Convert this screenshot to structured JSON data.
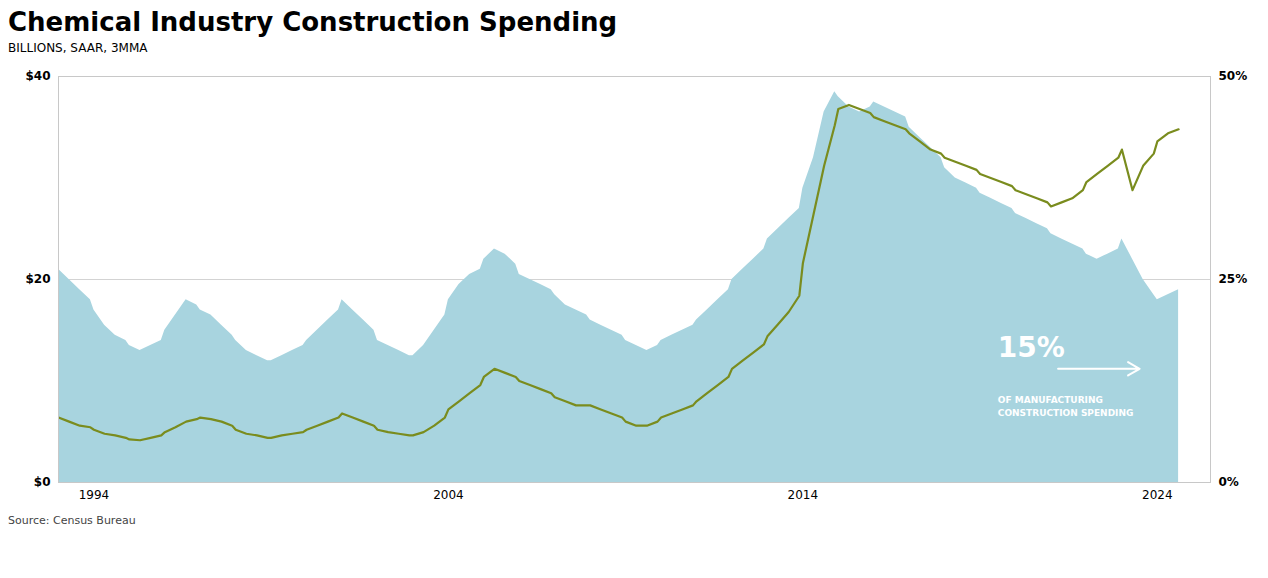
{
  "chart_data": {
    "type": "area",
    "title": "Chemical Industry Construction Spending",
    "subtitle": "BILLIONS, SAAR, 3MMA",
    "source": "Source:  Census Bureau",
    "x": [
      1993.0,
      1993.3,
      1993.6,
      1993.9,
      1994.0,
      1994.3,
      1994.6,
      1994.9,
      1995.0,
      1995.3,
      1995.6,
      1995.9,
      1996.0,
      1996.3,
      1996.6,
      1996.9,
      1997.0,
      1997.3,
      1997.6,
      1997.9,
      1998.0,
      1998.3,
      1998.6,
      1998.9,
      1999.0,
      1999.3,
      1999.6,
      1999.9,
      2000.0,
      2000.3,
      2000.6,
      2000.9,
      2001.0,
      2001.3,
      2001.6,
      2001.9,
      2002.0,
      2002.3,
      2002.6,
      2002.9,
      2003.0,
      2003.3,
      2003.6,
      2003.9,
      2004.0,
      2004.3,
      2004.6,
      2004.9,
      2005.0,
      2005.3,
      2005.6,
      2005.9,
      2006.0,
      2006.3,
      2006.6,
      2006.9,
      2007.0,
      2007.3,
      2007.6,
      2007.9,
      2008.0,
      2008.3,
      2008.6,
      2008.9,
      2009.0,
      2009.3,
      2009.6,
      2009.9,
      2010.0,
      2010.3,
      2010.6,
      2010.9,
      2011.0,
      2011.3,
      2011.6,
      2011.9,
      2012.0,
      2012.3,
      2012.6,
      2012.9,
      2013.0,
      2013.3,
      2013.6,
      2013.9,
      2014.0,
      2014.3,
      2014.6,
      2014.9,
      2015.0,
      2015.3,
      2015.6,
      2015.9,
      2016.0,
      2016.3,
      2016.6,
      2016.9,
      2017.0,
      2017.3,
      2017.6,
      2017.9,
      2018.0,
      2018.3,
      2018.6,
      2018.9,
      2019.0,
      2019.3,
      2019.6,
      2019.9,
      2020.0,
      2020.3,
      2020.6,
      2020.9,
      2021.0,
      2021.3,
      2021.6,
      2021.9,
      2022.0,
      2022.3,
      2022.6,
      2022.9,
      2023.0,
      2023.3,
      2023.6,
      2023.9,
      2024.0,
      2024.3,
      2024.6
    ],
    "series": [
      {
        "type": "area",
        "color": "#a8d4df",
        "values": [
          21.0,
          20.0,
          19.0,
          18.0,
          17.0,
          15.5,
          14.5,
          14.0,
          13.5,
          13.0,
          13.5,
          14.0,
          15.0,
          16.5,
          18.0,
          17.5,
          17.0,
          16.5,
          15.5,
          14.5,
          14.0,
          13.0,
          12.5,
          12.0,
          12.0,
          12.5,
          13.0,
          13.5,
          14.0,
          15.0,
          16.0,
          17.0,
          18.0,
          17.0,
          16.0,
          15.0,
          14.0,
          13.5,
          13.0,
          12.5,
          12.5,
          13.5,
          15.0,
          16.5,
          18.0,
          19.5,
          20.5,
          21.0,
          22.0,
          23.0,
          22.5,
          21.5,
          20.5,
          20.0,
          19.5,
          19.0,
          18.5,
          17.5,
          17.0,
          16.5,
          16.0,
          15.5,
          15.0,
          14.5,
          14.0,
          13.5,
          13.0,
          13.5,
          14.0,
          14.5,
          15.0,
          15.5,
          16.0,
          17.0,
          18.0,
          19.0,
          20.0,
          21.0,
          22.0,
          23.0,
          24.0,
          25.0,
          26.0,
          27.0,
          29.0,
          32.0,
          36.5,
          38.5,
          38.0,
          37.0,
          36.5,
          37.0,
          37.5,
          37.0,
          36.5,
          36.0,
          35.0,
          34.0,
          33.0,
          32.0,
          31.0,
          30.0,
          29.5,
          29.0,
          28.5,
          28.0,
          27.5,
          27.0,
          26.5,
          26.0,
          25.5,
          25.0,
          24.5,
          24.0,
          23.5,
          23.0,
          22.5,
          22.0,
          22.5,
          23.0,
          24.0,
          22.0,
          20.0,
          18.5,
          18.0,
          18.5,
          19.0
        ]
      },
      {
        "type": "line",
        "axis": "y2",
        "color": "#7a8c1e",
        "values": [
          8.0,
          7.5,
          7.0,
          6.8,
          6.5,
          6.0,
          5.8,
          5.5,
          5.3,
          5.2,
          5.5,
          5.8,
          6.2,
          6.8,
          7.5,
          7.8,
          8.0,
          7.8,
          7.5,
          7.0,
          6.5,
          6.0,
          5.8,
          5.5,
          5.5,
          5.8,
          6.0,
          6.2,
          6.5,
          7.0,
          7.5,
          8.0,
          8.5,
          8.0,
          7.5,
          7.0,
          6.5,
          6.2,
          6.0,
          5.8,
          5.8,
          6.2,
          7.0,
          8.0,
          9.0,
          10.0,
          11.0,
          12.0,
          13.0,
          14.0,
          13.5,
          13.0,
          12.5,
          12.0,
          11.5,
          11.0,
          10.5,
          10.0,
          9.5,
          9.5,
          9.5,
          9.0,
          8.5,
          8.0,
          7.5,
          7.0,
          7.0,
          7.5,
          8.0,
          8.5,
          9.0,
          9.5,
          10.0,
          11.0,
          12.0,
          13.0,
          14.0,
          15.0,
          16.0,
          17.0,
          18.0,
          19.5,
          21.0,
          23.0,
          27.0,
          33.0,
          39.0,
          44.0,
          46.0,
          46.5,
          46.0,
          45.5,
          45.0,
          44.5,
          44.0,
          43.5,
          43.0,
          42.0,
          41.0,
          40.5,
          40.0,
          39.5,
          39.0,
          38.5,
          38.0,
          37.5,
          37.0,
          36.5,
          36.0,
          35.5,
          35.0,
          34.5,
          34.0,
          34.5,
          35.0,
          36.0,
          37.0,
          38.0,
          39.0,
          40.0,
          41.0,
          36.0,
          39.0,
          40.5,
          42.0,
          43.0,
          43.5
        ]
      }
    ],
    "xlim": [
      1993.0,
      2025.5
    ],
    "xticks": [
      1994,
      2004,
      2014,
      2024
    ],
    "ylim": [
      0,
      40
    ],
    "yticks": [
      {
        "value": 0,
        "label": "$0"
      },
      {
        "value": 20,
        "label": "$20"
      },
      {
        "value": 40,
        "label": "$40"
      }
    ],
    "y2lim": [
      0,
      50
    ],
    "y2ticks": [
      {
        "value": 0,
        "label": "0%"
      },
      {
        "value": 25,
        "label": "25%"
      },
      {
        "value": 50,
        "label": "50%"
      }
    ],
    "grid": true,
    "annotations": [
      {
        "text": "15%",
        "x": 2019.5,
        "y": 16.5,
        "axis": "y2",
        "color": "#ffffff",
        "arrow": {
          "x1": 2021.2,
          "y1": 14.0,
          "x2": 2023.5,
          "y2": 14.0
        }
      },
      {
        "text": "OF MANUFACTURING\nCONSTRUCTION SPENDING",
        "x": 2019.5,
        "y": 9.5,
        "axis": "y2",
        "color": "#ffffff"
      }
    ]
  }
}
